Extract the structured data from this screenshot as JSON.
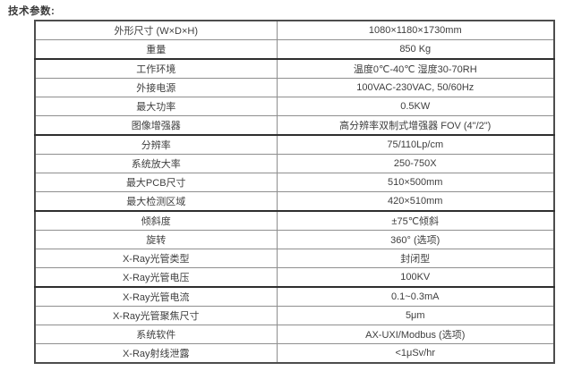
{
  "page_title": "技术参数:",
  "table": {
    "rows": [
      {
        "label": "外形尺寸 (W×D×H)",
        "value": "1080×1180×1730mm"
      },
      {
        "label": "重量",
        "value": "850 Kg"
      },
      {
        "label": "工作环境",
        "value": "温度0℃-40℃ 湿度30-70RH"
      },
      {
        "label": "外接电源",
        "value": "100VAC-230VAC, 50/60Hz"
      },
      {
        "label": "最大功率",
        "value": "0.5KW"
      },
      {
        "label": "图像增强器",
        "value": "高分辨率双制式增强器 FOV (4\"/2\")"
      },
      {
        "label": "分辨率",
        "value": "75/110Lp/cm"
      },
      {
        "label": "系统放大率",
        "value": "250-750X"
      },
      {
        "label": "最大PCB尺寸",
        "value": "510×500mm"
      },
      {
        "label": "最大检测区域",
        "value": "420×510mm"
      },
      {
        "label": "倾斜度",
        "value": "±75℃倾斜"
      },
      {
        "label": "旋转",
        "value": "360° (选项)"
      },
      {
        "label": "X-Ray光管类型",
        "value": "封闭型"
      },
      {
        "label": "X-Ray光管电压",
        "value": "100KV"
      },
      {
        "label": "X-Ray光管电流",
        "value": "0.1~0.3mA"
      },
      {
        "label": "X-Ray光管聚焦尺寸",
        "value": "5μm"
      },
      {
        "label": "系统软件",
        "value": "AX-UXI/Modbus (选项)"
      },
      {
        "label": "X-Ray射线泄露",
        "value": "<1μSv/hr"
      }
    ],
    "thick_border_after_rows": [
      2,
      6,
      10,
      14
    ]
  }
}
